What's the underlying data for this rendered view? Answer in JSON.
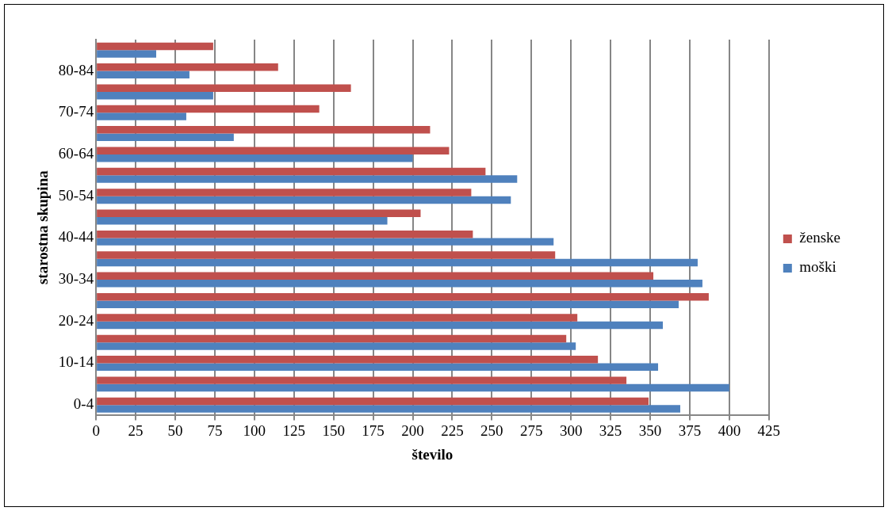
{
  "chart_data": {
    "type": "bar",
    "orientation": "horizontal",
    "xlabel": "število",
    "ylabel": "starostna skupina",
    "categories": [
      null,
      "80-84",
      null,
      "70-74",
      null,
      "60-64",
      null,
      "50-54",
      null,
      "40-44",
      null,
      "30-34",
      null,
      "20-24",
      null,
      "10-14",
      null,
      "0-4"
    ],
    "series": [
      {
        "name": "ženske",
        "color": "#c0504d",
        "values": [
          74,
          115,
          161,
          141,
          211,
          223,
          246,
          237,
          205,
          238,
          290,
          352,
          387,
          304,
          297,
          317,
          335,
          349
        ]
      },
      {
        "name": "moški",
        "color": "#4f81bd",
        "values": [
          38,
          59,
          74,
          57,
          87,
          200,
          266,
          262,
          184,
          289,
          380,
          383,
          368,
          358,
          303,
          355,
          400,
          369
        ]
      }
    ],
    "xlim": [
      0,
      425
    ],
    "xticks": [
      0,
      25,
      50,
      75,
      100,
      125,
      150,
      175,
      200,
      225,
      250,
      275,
      300,
      325,
      350,
      375,
      400,
      425
    ],
    "grid": "x",
    "legend": "right"
  }
}
